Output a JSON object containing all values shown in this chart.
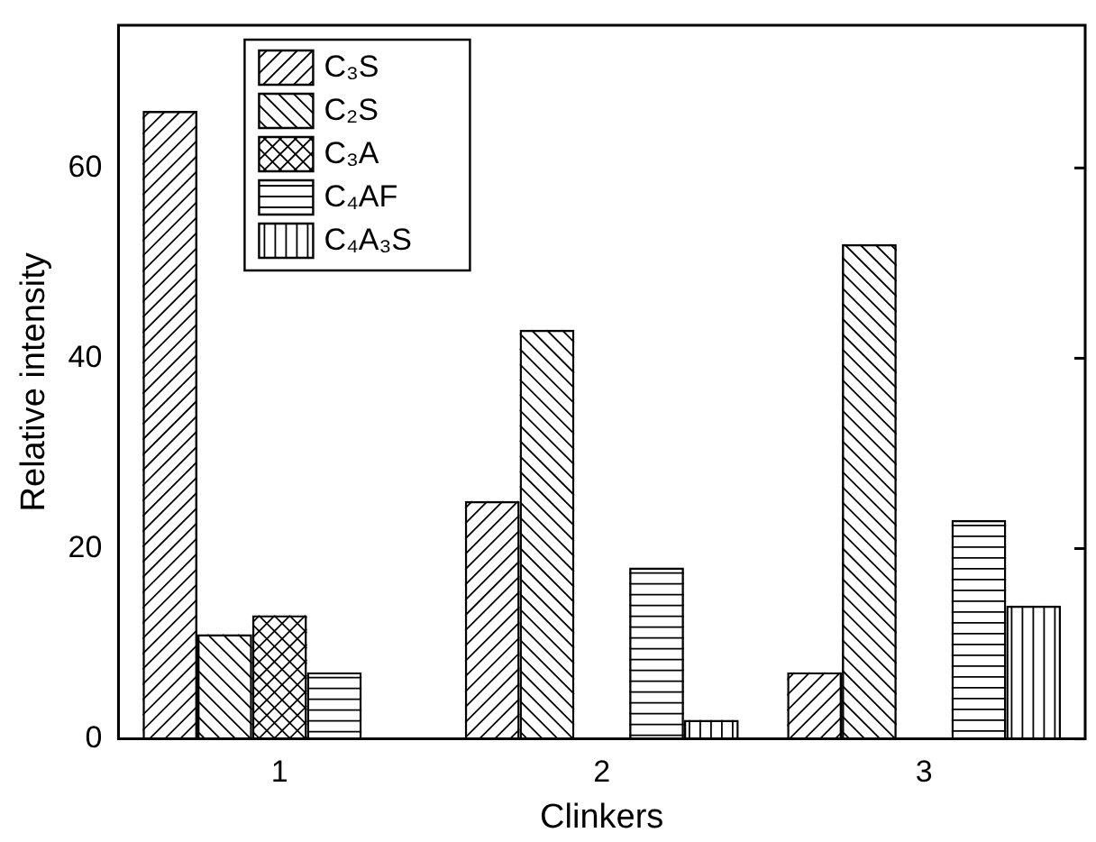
{
  "chart_data": {
    "type": "bar",
    "xlabel": "Clinkers",
    "ylabel": "Relative intensity",
    "categories": [
      "1",
      "2",
      "3"
    ],
    "series": [
      {
        "name": "C₃S",
        "color": "#000000",
        "values": [
          66,
          25,
          7
        ]
      },
      {
        "name": "C₂S",
        "color": "#000000",
        "values": [
          11,
          43,
          52
        ]
      },
      {
        "name": "C₃A",
        "color": "#000000",
        "values": [
          13,
          null,
          null
        ]
      },
      {
        "name": "C₄AF",
        "color": "#000000",
        "values": [
          7,
          18,
          23
        ]
      },
      {
        "name": "C₄A₃S",
        "color": "#000000",
        "values": [
          null,
          2,
          14
        ]
      }
    ],
    "ylim": [
      0,
      75
    ],
    "yticks": [
      0,
      20,
      40,
      60
    ],
    "grid": false,
    "legend": "top left"
  }
}
